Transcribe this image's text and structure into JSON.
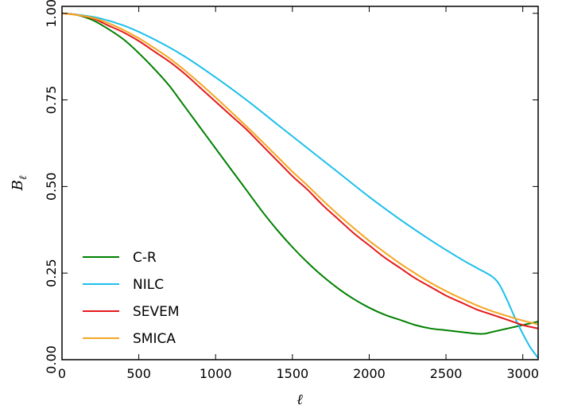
{
  "chart_data": {
    "type": "line",
    "xlabel": "ℓ",
    "ylabel": "B",
    "ylabel_subscript": "ℓ",
    "xlim": [
      0,
      3100
    ],
    "ylim": [
      0,
      1.02
    ],
    "xticks": [
      0,
      500,
      1000,
      1500,
      2000,
      2500,
      3000
    ],
    "xtick_labels": [
      "0",
      "500",
      "1000",
      "1500",
      "2000",
      "2500",
      "3000"
    ],
    "yticks": [
      0,
      0.25,
      0.5,
      0.75,
      1.0
    ],
    "ytick_labels": [
      "0.00",
      "0.25",
      "0.50",
      "0.75",
      "1.00"
    ],
    "grid": false,
    "legend_position": "lower-left",
    "series": [
      {
        "name": "C-R",
        "color": "#008000",
        "points": [
          [
            0,
            1.0
          ],
          [
            100,
            0.995
          ],
          [
            200,
            0.98
          ],
          [
            300,
            0.955
          ],
          [
            400,
            0.925
          ],
          [
            500,
            0.885
          ],
          [
            600,
            0.84
          ],
          [
            700,
            0.79
          ],
          [
            800,
            0.73
          ],
          [
            900,
            0.67
          ],
          [
            1000,
            0.61
          ],
          [
            1100,
            0.55
          ],
          [
            1200,
            0.49
          ],
          [
            1300,
            0.43
          ],
          [
            1400,
            0.375
          ],
          [
            1500,
            0.325
          ],
          [
            1600,
            0.28
          ],
          [
            1700,
            0.24
          ],
          [
            1800,
            0.205
          ],
          [
            1900,
            0.175
          ],
          [
            2000,
            0.15
          ],
          [
            2100,
            0.13
          ],
          [
            2200,
            0.115
          ],
          [
            2300,
            0.1
          ],
          [
            2400,
            0.09
          ],
          [
            2500,
            0.085
          ],
          [
            2600,
            0.08
          ],
          [
            2700,
            0.075
          ],
          [
            2750,
            0.075
          ],
          [
            2800,
            0.08
          ],
          [
            2900,
            0.09
          ],
          [
            3000,
            0.1
          ],
          [
            3100,
            0.11
          ]
        ]
      },
      {
        "name": "NILC",
        "color": "#1cbfed",
        "points": [
          [
            0,
            1.0
          ],
          [
            200,
            0.99
          ],
          [
            400,
            0.965
          ],
          [
            600,
            0.925
          ],
          [
            800,
            0.875
          ],
          [
            1000,
            0.815
          ],
          [
            1200,
            0.75
          ],
          [
            1400,
            0.68
          ],
          [
            1600,
            0.61
          ],
          [
            1800,
            0.54
          ],
          [
            2000,
            0.47
          ],
          [
            2200,
            0.405
          ],
          [
            2400,
            0.345
          ],
          [
            2600,
            0.29
          ],
          [
            2700,
            0.265
          ],
          [
            2800,
            0.24
          ],
          [
            2850,
            0.215
          ],
          [
            2900,
            0.17
          ],
          [
            2950,
            0.12
          ],
          [
            3000,
            0.075
          ],
          [
            3050,
            0.035
          ],
          [
            3100,
            0.005
          ]
        ]
      },
      {
        "name": "SEVEM",
        "color": "#e51b1b",
        "points": [
          [
            0,
            1.0
          ],
          [
            100,
            0.995
          ],
          [
            200,
            0.985
          ],
          [
            300,
            0.965
          ],
          [
            400,
            0.945
          ],
          [
            500,
            0.92
          ],
          [
            600,
            0.89
          ],
          [
            700,
            0.86
          ],
          [
            800,
            0.825
          ],
          [
            900,
            0.785
          ],
          [
            1000,
            0.745
          ],
          [
            1100,
            0.705
          ],
          [
            1200,
            0.665
          ],
          [
            1300,
            0.62
          ],
          [
            1400,
            0.575
          ],
          [
            1500,
            0.53
          ],
          [
            1600,
            0.49
          ],
          [
            1700,
            0.445
          ],
          [
            1800,
            0.405
          ],
          [
            1900,
            0.365
          ],
          [
            2000,
            0.33
          ],
          [
            2100,
            0.295
          ],
          [
            2200,
            0.265
          ],
          [
            2300,
            0.235
          ],
          [
            2400,
            0.21
          ],
          [
            2500,
            0.185
          ],
          [
            2600,
            0.165
          ],
          [
            2700,
            0.145
          ],
          [
            2800,
            0.13
          ],
          [
            2900,
            0.115
          ],
          [
            3000,
            0.1
          ],
          [
            3100,
            0.09
          ]
        ]
      },
      {
        "name": "SMICA",
        "color": "#f5a623",
        "points": [
          [
            0,
            1.0
          ],
          [
            100,
            0.995
          ],
          [
            200,
            0.987
          ],
          [
            300,
            0.972
          ],
          [
            400,
            0.952
          ],
          [
            500,
            0.928
          ],
          [
            600,
            0.9
          ],
          [
            700,
            0.87
          ],
          [
            800,
            0.835
          ],
          [
            900,
            0.797
          ],
          [
            1000,
            0.757
          ],
          [
            1100,
            0.716
          ],
          [
            1200,
            0.674
          ],
          [
            1300,
            0.631
          ],
          [
            1400,
            0.587
          ],
          [
            1500,
            0.543
          ],
          [
            1600,
            0.502
          ],
          [
            1700,
            0.459
          ],
          [
            1800,
            0.418
          ],
          [
            1900,
            0.38
          ],
          [
            2000,
            0.343
          ],
          [
            2100,
            0.31
          ],
          [
            2200,
            0.278
          ],
          [
            2300,
            0.249
          ],
          [
            2400,
            0.222
          ],
          [
            2500,
            0.198
          ],
          [
            2600,
            0.177
          ],
          [
            2700,
            0.157
          ],
          [
            2800,
            0.14
          ],
          [
            2900,
            0.126
          ],
          [
            3000,
            0.113
          ],
          [
            3100,
            0.102
          ]
        ]
      }
    ]
  }
}
